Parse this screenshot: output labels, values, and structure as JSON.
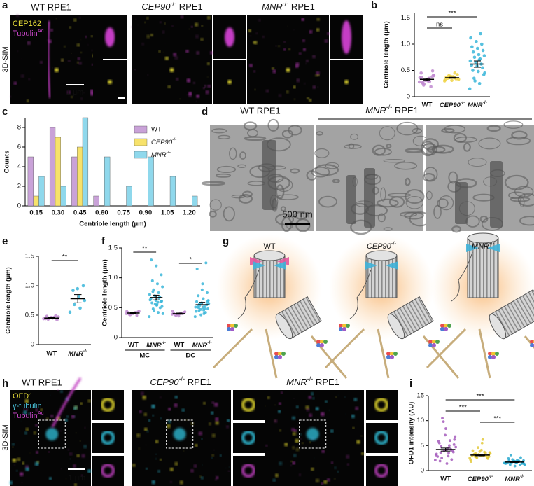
{
  "figure": {
    "panel_labels": [
      "a",
      "b",
      "c",
      "d",
      "e",
      "f",
      "g",
      "h",
      "i"
    ],
    "a": {
      "titles": [
        "WT RPE1",
        "CEP90-/- RPE1",
        "MNR-/- RPE1"
      ],
      "method": "3D-SIM",
      "stains": [
        {
          "name": "CEP162"
        },
        {
          "name": "Tubulin",
          "sup": "Ac"
        }
      ],
      "scale": "1 μm"
    },
    "d": {
      "titles": [
        "WT RPE1",
        "MNR-/- RPE1"
      ],
      "scale": "500 nm"
    },
    "g": {
      "titles": [
        "WT",
        "CEP90-/-",
        "MNR-/-"
      ]
    },
    "h": {
      "titles": [
        "WT RPE1",
        "CEP90-/- RPE1",
        "MNR-/- RPE1"
      ],
      "method": "3D-SIM",
      "stains": [
        {
          "name": "OFD1"
        },
        {
          "name": "γ-tubulin"
        },
        {
          "name": "Tubulin",
          "sup": "Ac"
        }
      ],
      "scale": "1 μm"
    }
  },
  "chart_data": [
    {
      "type": "strip",
      "ylabel": "Centriole length (μm)",
      "ylim": [
        0,
        1.6
      ],
      "yticks": [
        0,
        0.5,
        {
          "value": 1,
          "label": "1.0"
        },
        1.5
      ],
      "annotations": [
        "***",
        "ns"
      ],
      "series": [
        {
          "name": "WT",
          "color": "#c08ad0",
          "mean": 0.33,
          "sem": 0.02,
          "values": [
            0.28,
            0.35,
            0.22,
            0.41,
            0.3,
            0.26,
            0.38,
            0.33,
            0.45,
            0.19,
            0.31,
            0.36,
            0.29,
            0.24,
            0.4,
            0.34,
            0.27,
            0.49,
            0.32,
            0.37
          ]
        },
        {
          "name": "CEP90-/-",
          "color": "#f0d444",
          "mean": 0.36,
          "sem": 0.01,
          "values": [
            0.3,
            0.36,
            0.4,
            0.33,
            0.38,
            0.35,
            0.42,
            0.31,
            0.37,
            0.34,
            0.39,
            0.32,
            0.45,
            0.36
          ]
        },
        {
          "name": "MNR-/-",
          "color": "#3ab6d9",
          "mean": 0.62,
          "sem": 0.06,
          "values": [
            0.15,
            0.25,
            0.35,
            0.42,
            0.48,
            0.5,
            0.55,
            0.58,
            0.6,
            0.62,
            0.65,
            0.68,
            0.72,
            0.75,
            0.78,
            0.8,
            0.85,
            0.88,
            0.92,
            0.95,
            1.0,
            1.05,
            1.12,
            1.2,
            0.3,
            0.45,
            0.7
          ]
        }
      ]
    },
    {
      "type": "bar",
      "ylabel": "Counts",
      "xlabel": "Centriole length (μm)",
      "ylim": [
        0,
        9
      ],
      "yticks": [
        0,
        2,
        4,
        6,
        8
      ],
      "categories": [
        "0.15",
        "0.30",
        "0.45",
        "0.60",
        "0.75",
        "0.90",
        "1.05",
        "1.20"
      ],
      "series": [
        {
          "name": "WT",
          "color": "#c9a2d8",
          "values": [
            5,
            8,
            5,
            1,
            0,
            0,
            0,
            0
          ]
        },
        {
          "name": "CEP90-/-",
          "color": "#f7e26b",
          "values": [
            1,
            7,
            6,
            0,
            0,
            0,
            0,
            0
          ]
        },
        {
          "name": "MNR-/-",
          "color": "#8fd8ec",
          "values": [
            3,
            2,
            9,
            5,
            2,
            5,
            3,
            1
          ]
        }
      ]
    },
    {
      "type": "strip",
      "ylabel": "Centriole length (μm)",
      "ylim": [
        0,
        1.5
      ],
      "yticks": [
        0,
        0.5,
        {
          "value": 1,
          "label": "1.0"
        },
        1.5
      ],
      "annotations": [
        "**"
      ],
      "series": [
        {
          "name": "WT",
          "color": "#c08ad0",
          "mean": 0.45,
          "sem": 0.01,
          "values": [
            0.44,
            0.46,
            0.43,
            0.47,
            0.45,
            0.48,
            0.42,
            0.46,
            0.44,
            0.49
          ]
        },
        {
          "name": "MNR-/-",
          "color": "#3ab6d9",
          "mean": 0.78,
          "sem": 0.07,
          "values": [
            0.55,
            0.62,
            0.68,
            0.75,
            0.82,
            0.92,
            1.0,
            0.95
          ]
        }
      ]
    },
    {
      "type": "strip",
      "ylabel": "Centriole length (μm)",
      "ylim": [
        0,
        1.5
      ],
      "yticks": [
        0,
        0.5,
        {
          "value": 1,
          "label": "1.0"
        },
        1.5
      ],
      "annotations": [
        "**",
        "*"
      ],
      "groups": [
        "MC",
        "DC"
      ],
      "series": [
        {
          "name": "WT",
          "color": "#c08ad0",
          "mean": 0.41,
          "sem": 0.01,
          "values": [
            0.4,
            0.42,
            0.38,
            0.44,
            0.41,
            0.39,
            0.43,
            0.4,
            0.42,
            0.37,
            0.41,
            0.44
          ]
        },
        {
          "name": "MNR-/-",
          "color": "#3ab6d9",
          "mean": 0.67,
          "sem": 0.04,
          "values": [
            0.35,
            0.42,
            0.48,
            0.52,
            0.55,
            0.58,
            0.6,
            0.62,
            0.65,
            0.68,
            0.7,
            0.72,
            0.75,
            0.8,
            0.85,
            0.9,
            0.95,
            1.05,
            1.2,
            1.3,
            0.5,
            0.56,
            0.63,
            0.66,
            0.45,
            0.4,
            0.59,
            0.77,
            0.61,
            0.54
          ]
        },
        {
          "name": "WT",
          "color": "#c08ad0",
          "mean": 0.4,
          "sem": 0.01,
          "values": [
            0.39,
            0.41,
            0.37,
            0.43,
            0.4,
            0.38,
            0.42,
            0.36,
            0.41,
            0.4,
            0.39,
            0.44
          ]
        },
        {
          "name": "MNR-/-",
          "color": "#3ab6d9",
          "mean": 0.55,
          "sem": 0.04,
          "values": [
            0.35,
            0.4,
            0.45,
            0.48,
            0.5,
            0.52,
            0.55,
            0.58,
            0.6,
            0.42,
            0.47,
            0.51,
            0.53,
            0.56,
            0.62,
            0.65,
            0.7,
            0.75,
            0.8,
            1.15,
            1.25,
            0.38,
            0.44,
            0.49,
            0.54,
            0.57,
            0.46,
            0.5,
            0.6,
            0.9
          ]
        }
      ]
    },
    {
      "type": "strip",
      "ylabel": "OFD1 intensity (AU)",
      "ylim": [
        0,
        15
      ],
      "yticks": [
        0,
        5,
        10,
        15
      ],
      "annotations": [
        "***",
        "***",
        "***"
      ],
      "series": [
        {
          "name": "WT",
          "color": "#a45cbc",
          "mean": 4.2,
          "sem": 0.3,
          "values": [
            2.1,
            3.5,
            4.8,
            6.2,
            1.4,
            5.5,
            3.9,
            7.1,
            2.8,
            4.2,
            9.8,
            3.1,
            5.0,
            2.5,
            6.8,
            4.5,
            1.9,
            3.7,
            8.4,
            5.9,
            2.2,
            4.0,
            3.3,
            6.0,
            10.5,
            4.7,
            2.9,
            3.6,
            5.2,
            4.1
          ]
        },
        {
          "name": "CEP90-/-",
          "color": "#e3c93a",
          "mean": 3.1,
          "sem": 0.15,
          "values": [
            2.5,
            3.0,
            3.4,
            2.8,
            4.1,
            3.2,
            2.6,
            3.8,
            2.9,
            3.5,
            4.6,
            2.2,
            3.1,
            2.7,
            3.6,
            5.5,
            3.3,
            2.4,
            3.0,
            4.0,
            2.9,
            3.2,
            1.8,
            3.7,
            2.6,
            3.4,
            6.2,
            2.8,
            3.1,
            3.0
          ]
        },
        {
          "name": "MNR-/-",
          "color": "#2aa9cf",
          "mean": 1.7,
          "sem": 0.08,
          "values": [
            1.5,
            1.8,
            1.2,
            2.0,
            1.6,
            2.4,
            1.4,
            1.9,
            1.7,
            1.1,
            2.2,
            1.5,
            1.8,
            3.1,
            1.3,
            1.6,
            2.0,
            1.7,
            0.9,
            1.5,
            2.6,
            1.8,
            1.4,
            1.9,
            1.6,
            1.2,
            2.1,
            1.7,
            1.5,
            1.8
          ]
        }
      ]
    }
  ]
}
